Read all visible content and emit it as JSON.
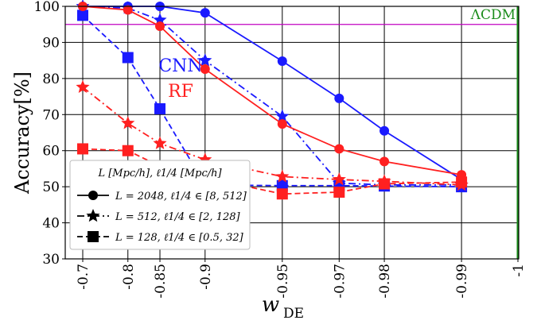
{
  "chart_data": {
    "type": "line",
    "xlabel": "w",
    "xlabel_sub": "DE",
    "ylabel": "Accuracy[%]",
    "xlim": [
      -0.7,
      -1.0
    ],
    "ylim": [
      30,
      100
    ],
    "x_ticks": [
      -0.7,
      -0.8,
      -0.85,
      -0.9,
      -0.95,
      -0.97,
      -0.98,
      -0.99,
      -1
    ],
    "x_tick_labels": [
      "-0.7",
      "-0.8",
      "-0.85",
      "-0.9",
      "-0.95",
      "-0.97",
      "-0.98",
      "-0.99",
      "-1"
    ],
    "y_ticks": [
      30,
      40,
      50,
      60,
      70,
      80,
      90,
      100
    ],
    "y_tick_labels": [
      "30",
      "40",
      "50",
      "60",
      "70",
      "80",
      "90",
      "100"
    ],
    "grid": true,
    "reference_line": {
      "y": 95,
      "color": "#c000c0"
    },
    "lcdm_line": {
      "x": -1.0,
      "color": "#1a8c1a",
      "label": "ΛCDM"
    },
    "x_axis_scale": "transformed: -log10(1 + w)",
    "method_labels": [
      {
        "text": "CNN",
        "color": "#1a1aff"
      },
      {
        "text": "RF",
        "color": "#ff2020"
      }
    ],
    "legend": {
      "placement": "lower-left",
      "title": "L [Mpc/h], ℓ1/4 [Mpc/h]",
      "entries": [
        {
          "label": "L = 2048, ℓ1/4 ∈ [8, 512]",
          "marker": "circle",
          "dash": "solid"
        },
        {
          "label": "L = 512, ℓ1/4 ∈ [2, 128]",
          "marker": "star",
          "dash": "dashdot"
        },
        {
          "label": "L = 128, ℓ1/4 ∈ [0.5, 32]",
          "marker": "square",
          "dash": "dashed"
        }
      ]
    },
    "x": [
      -0.7,
      -0.8,
      -0.85,
      -0.9,
      -0.95,
      -0.97,
      -0.98,
      -0.99
    ],
    "series": [
      {
        "method": "CNN",
        "color": "#1a1aff",
        "marker": "circle",
        "dash": "solid",
        "values": [
          100,
          100,
          100,
          98.2,
          84.8,
          74.5,
          65.5,
          52.0
        ]
      },
      {
        "method": "CNN",
        "color": "#1a1aff",
        "marker": "star",
        "dash": "dashdot",
        "values": [
          100,
          99.5,
          96.2,
          85.0,
          69.5,
          51.0,
          50.5,
          50.5
        ]
      },
      {
        "method": "CNN",
        "color": "#1a1aff",
        "marker": "square",
        "dash": "dashed",
        "values": [
          97.5,
          85.8,
          71.6,
          50.5,
          50.3,
          50.3,
          50.2,
          50.0
        ]
      },
      {
        "method": "RF",
        "color": "#ff2020",
        "marker": "circle",
        "dash": "solid",
        "values": [
          100,
          99.0,
          94.5,
          82.6,
          67.4,
          60.5,
          57.0,
          53.3
        ]
      },
      {
        "method": "RF",
        "color": "#ff2020",
        "marker": "star",
        "dash": "dashdot",
        "values": [
          77.6,
          67.6,
          62.0,
          57.5,
          52.8,
          52.0,
          51.5,
          50.5
        ]
      },
      {
        "method": "RF",
        "color": "#ff2020",
        "marker": "square",
        "dash": "dashed",
        "values": [
          60.5,
          60.0,
          55.7,
          52.5,
          48.0,
          48.5,
          50.8,
          51.3
        ]
      }
    ]
  }
}
